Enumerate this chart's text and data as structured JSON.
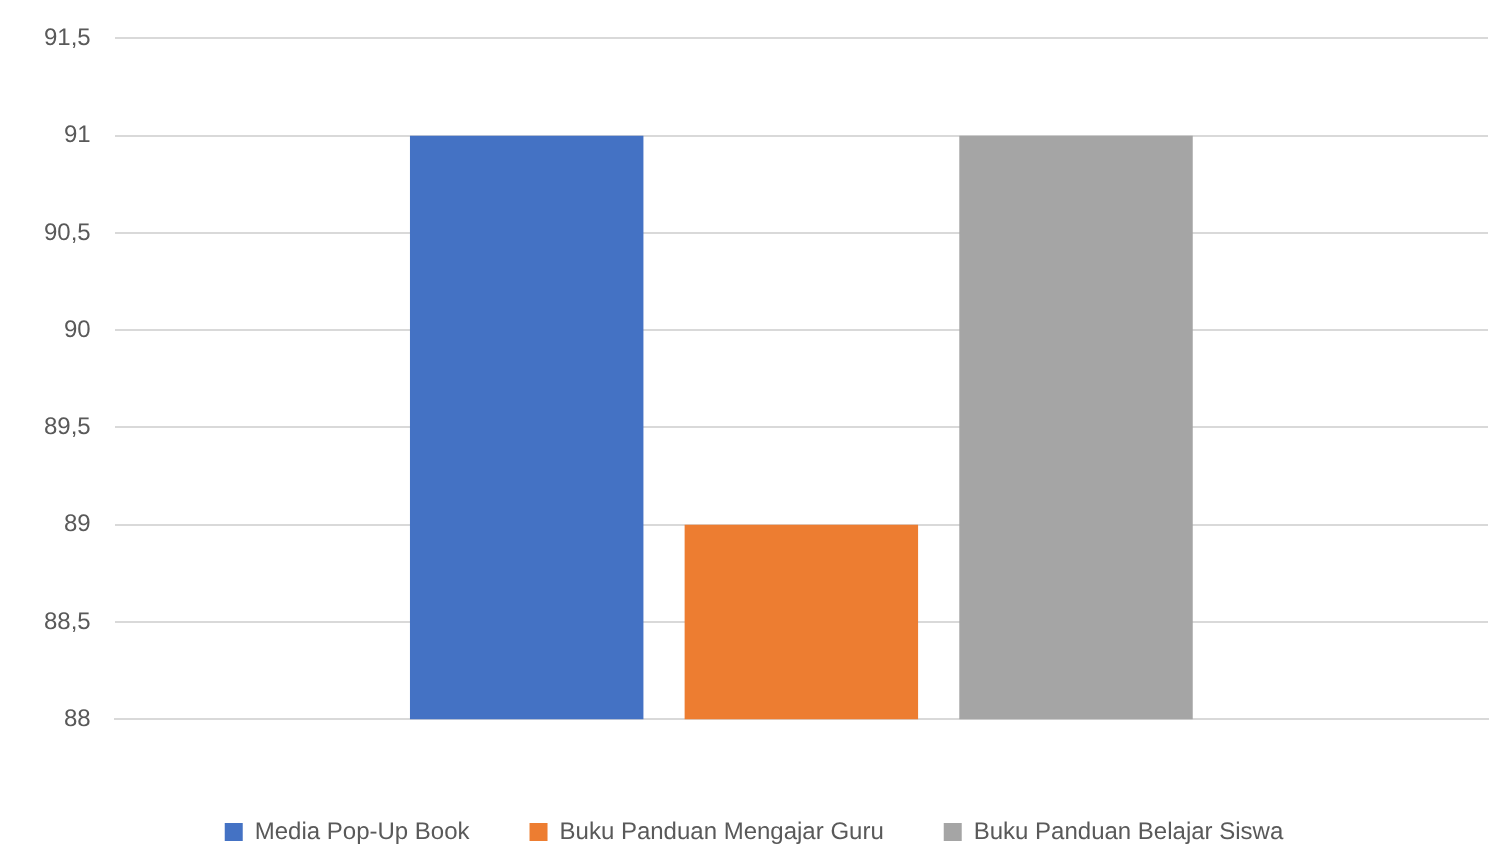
{
  "chart_data": {
    "type": "bar",
    "categories": [
      null
    ],
    "series": [
      {
        "name": "Media Pop-Up Book",
        "color": "#4472c4",
        "values": [
          91
        ]
      },
      {
        "name": "Buku Panduan Mengajar Guru",
        "color": "#ed7d31",
        "values": [
          89
        ]
      },
      {
        "name": "Buku Panduan Belajar Siswa",
        "color": "#a5a5a5",
        "values": [
          91
        ]
      }
    ],
    "ylim": [
      88,
      91.5
    ],
    "yticks": [
      88,
      {
        "value": 88.5,
        "label": "88,5"
      },
      89,
      {
        "value": 89.5,
        "label": "89,5"
      },
      90,
      {
        "value": 90.5,
        "label": "90,5"
      },
      91,
      {
        "value": 91.5,
        "label": "91,5"
      }
    ],
    "grid": "y",
    "legend": "bottom"
  }
}
